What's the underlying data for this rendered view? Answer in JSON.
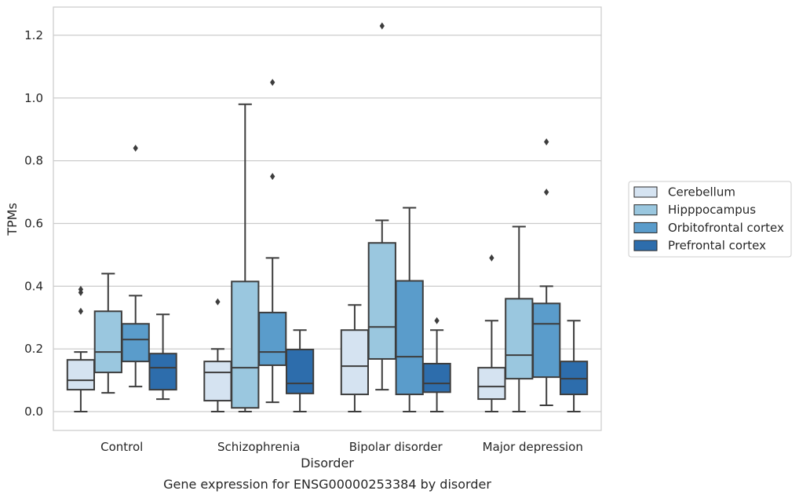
{
  "chart_data": {
    "type": "box",
    "caption": "Gene expression for ENSG00000253384 by disorder",
    "xlabel": "Disorder",
    "ylabel": "TPMs",
    "ylim": [
      -0.06,
      1.29
    ],
    "yticks": [
      "0.0",
      "0.2",
      "0.4",
      "0.6",
      "0.8",
      "1.0",
      "1.2"
    ],
    "grid": "horizontal",
    "legend_position": "right",
    "categories": [
      "Control",
      "Schizophrenia",
      "Bipolar disorder",
      "Major depression"
    ],
    "series": [
      {
        "name": "Cerebellum",
        "color": "#d5e3f1",
        "boxes": [
          {
            "whisker_low": 0.0,
            "q1": 0.07,
            "median": 0.1,
            "q3": 0.165,
            "whisker_high": 0.19,
            "outliers": [
              0.32,
              0.38,
              0.39
            ]
          },
          {
            "whisker_low": 0.0,
            "q1": 0.035,
            "median": 0.125,
            "q3": 0.16,
            "whisker_high": 0.2,
            "outliers": [
              0.35
            ]
          },
          {
            "whisker_low": 0.0,
            "q1": 0.055,
            "median": 0.145,
            "q3": 0.26,
            "whisker_high": 0.34,
            "outliers": []
          },
          {
            "whisker_low": 0.0,
            "q1": 0.04,
            "median": 0.08,
            "q3": 0.14,
            "whisker_high": 0.29,
            "outliers": [
              0.49
            ]
          }
        ]
      },
      {
        "name": "Hipppocampus",
        "color": "#9ac7df",
        "boxes": [
          {
            "whisker_low": 0.06,
            "q1": 0.125,
            "median": 0.19,
            "q3": 0.32,
            "whisker_high": 0.44,
            "outliers": []
          },
          {
            "whisker_low": 0.0,
            "q1": 0.012,
            "median": 0.14,
            "q3": 0.415,
            "whisker_high": 0.98,
            "outliers": []
          },
          {
            "whisker_low": 0.07,
            "q1": 0.168,
            "median": 0.27,
            "q3": 0.538,
            "whisker_high": 0.61,
            "outliers": [
              1.23
            ]
          },
          {
            "whisker_low": 0.0,
            "q1": 0.105,
            "median": 0.18,
            "q3": 0.36,
            "whisker_high": 0.59,
            "outliers": []
          }
        ]
      },
      {
        "name": "Orbitofrontal cortex",
        "color": "#5a9ccb",
        "boxes": [
          {
            "whisker_low": 0.08,
            "q1": 0.16,
            "median": 0.23,
            "q3": 0.28,
            "whisker_high": 0.37,
            "outliers": [
              0.84
            ]
          },
          {
            "whisker_low": 0.03,
            "q1": 0.148,
            "median": 0.19,
            "q3": 0.316,
            "whisker_high": 0.49,
            "outliers": [
              0.75,
              1.05
            ]
          },
          {
            "whisker_low": 0.0,
            "q1": 0.055,
            "median": 0.175,
            "q3": 0.417,
            "whisker_high": 0.65,
            "outliers": []
          },
          {
            "whisker_low": 0.02,
            "q1": 0.11,
            "median": 0.28,
            "q3": 0.345,
            "whisker_high": 0.4,
            "outliers": [
              0.7,
              0.86
            ]
          }
        ]
      },
      {
        "name": "Prefrontal cortex",
        "color": "#2d6dac",
        "boxes": [
          {
            "whisker_low": 0.04,
            "q1": 0.07,
            "median": 0.14,
            "q3": 0.185,
            "whisker_high": 0.31,
            "outliers": []
          },
          {
            "whisker_low": 0.0,
            "q1": 0.058,
            "median": 0.09,
            "q3": 0.198,
            "whisker_high": 0.26,
            "outliers": []
          },
          {
            "whisker_low": 0.0,
            "q1": 0.062,
            "median": 0.09,
            "q3": 0.153,
            "whisker_high": 0.26,
            "outliers": [
              0.29
            ]
          },
          {
            "whisker_low": 0.0,
            "q1": 0.055,
            "median": 0.105,
            "q3": 0.16,
            "whisker_high": 0.29,
            "outliers": []
          }
        ]
      }
    ]
  }
}
